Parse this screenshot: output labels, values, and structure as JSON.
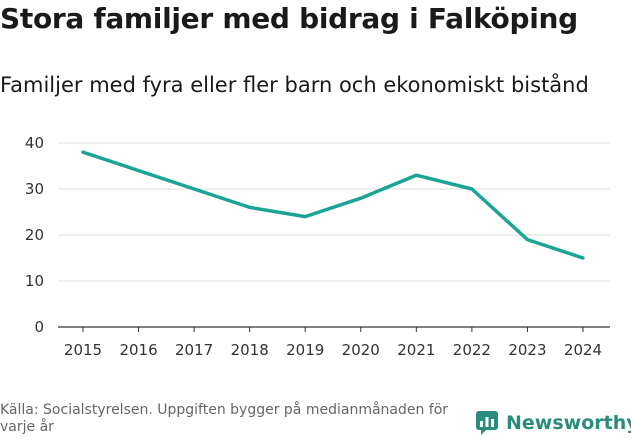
{
  "title": "Stora familjer med bidrag i Falköping",
  "subtitle": "Familjer med fyra eller fler barn och ekonomiskt bistånd",
  "source": "Källa: Socialstyrelsen. Uppgiften bygger på medianmånaden för varje år",
  "brand": {
    "name": "Newsworthy",
    "color": "#2a8c7a",
    "icon": "newsworthy-logo-icon"
  },
  "line_color": "#1ba396",
  "chart_data": {
    "type": "line",
    "title": "Stora familjer med bidrag i Falköping",
    "subtitle": "Familjer med fyra eller fler barn och ekonomiskt bistånd",
    "xlabel": "",
    "ylabel": "",
    "categories": [
      "2015",
      "2016",
      "2017",
      "2018",
      "2019",
      "2020",
      "2021",
      "2022",
      "2023",
      "2024"
    ],
    "series": [
      {
        "name": "Familjer med fyra eller fler barn och ekonomiskt bistånd",
        "values": [
          38,
          34,
          30,
          26,
          24,
          28,
          33,
          30,
          19,
          15
        ]
      }
    ],
    "yticks": [
      "0",
      "10",
      "20",
      "30",
      "40"
    ],
    "ylim": [
      0,
      40
    ],
    "grid": true,
    "legend": "none"
  }
}
